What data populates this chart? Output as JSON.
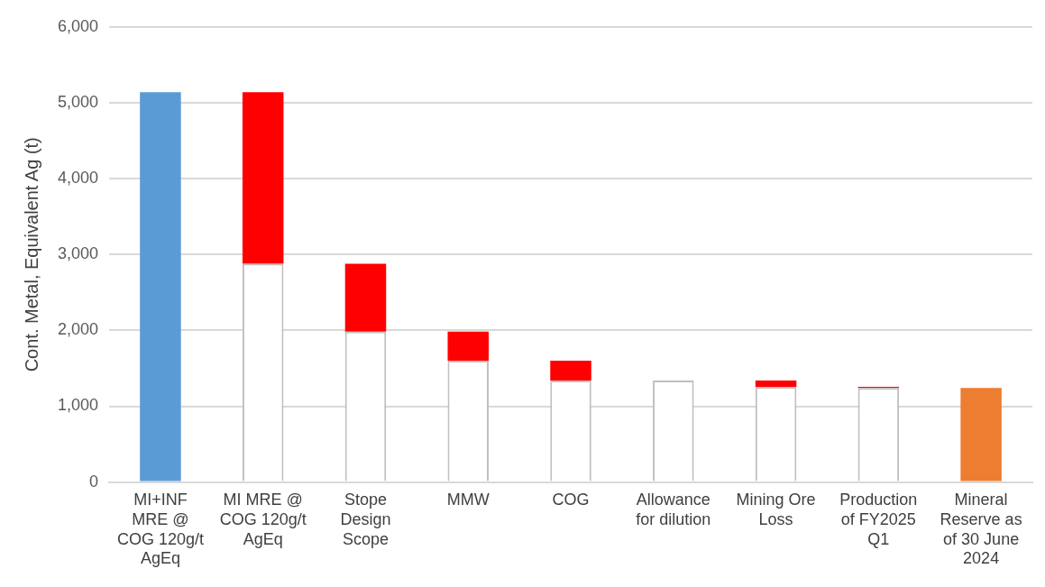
{
  "chart_data": {
    "type": "bar",
    "stacked": true,
    "ylabel": "Cont. Metal, Equivalent Ag (t)",
    "categories": [
      "MI+INF MRE @ COG 120g/t AgEq",
      "MI MRE @ COG 120g/t AgEq",
      "Stope Design Scope",
      "MMW",
      "COG",
      "Allowance for dilution",
      "Mining Ore Loss",
      "Production of FY2025 Q1",
      "Mineral Reserve as of 30 June 2024"
    ],
    "series": [
      {
        "color": "#5b9bd5",
        "values": [
          5140,
          null,
          null,
          null,
          null,
          null,
          null,
          null,
          null
        ]
      },
      {
        "color": "#ffffff",
        "values": [
          null,
          2880,
          1985,
          1600,
          1340,
          1340,
          1255,
          1240,
          null
        ]
      },
      {
        "color": "#ff0000",
        "values": [
          null,
          2260,
          895,
          385,
          260,
          null,
          85,
          15,
          null
        ]
      },
      {
        "color": "#ed7d31",
        "values": [
          null,
          null,
          null,
          null,
          null,
          null,
          null,
          null,
          1240
        ]
      }
    ],
    "ylim": [
      0,
      6000
    ],
    "yticks": [
      {
        "value": 0,
        "label": "0"
      },
      {
        "value": 1000,
        "label": "1,000"
      },
      {
        "value": 2000,
        "label": "2,000"
      },
      {
        "value": 3000,
        "label": "3,000"
      },
      {
        "value": 4000,
        "label": "4,000"
      },
      {
        "value": 5000,
        "label": "5,000"
      },
      {
        "value": 6000,
        "label": "6,000"
      }
    ],
    "grid": "y",
    "legend": false
  }
}
